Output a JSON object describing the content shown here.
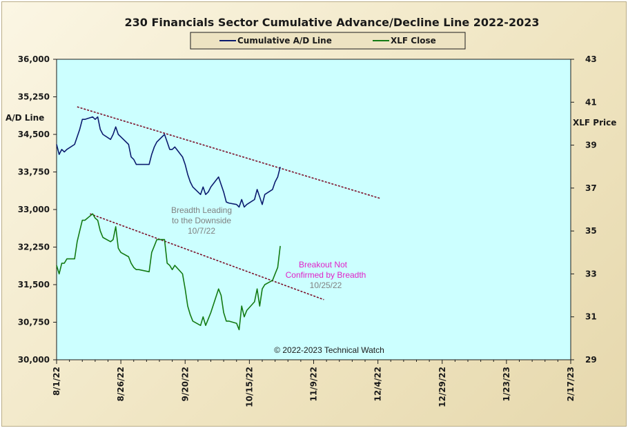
{
  "chart_data": {
    "type": "line",
    "title": "230 Financials  Sector Cumulative  Advance/Decline  Line 2022-2023",
    "ylabel_left": "A/D Line",
    "ylabel_right": "XLF Price",
    "x_tick_labels": [
      "8/1/22",
      "8/26/22",
      "9/20/22",
      "10/15/22",
      "11/9/22",
      "12/4/22",
      "12/29/22",
      "1/23/23",
      "2/17/23"
    ],
    "x_tick_dates": [
      "2022-08-01",
      "2022-08-26",
      "2022-09-20",
      "2022-10-15",
      "2022-11-09",
      "2022-12-04",
      "2022-12-29",
      "2023-01-23",
      "2023-02-17"
    ],
    "xlim": [
      "2022-08-01",
      "2023-02-17"
    ],
    "ylim_left": [
      30000,
      36000
    ],
    "yticks_left": [
      "30,000",
      "30,750",
      "31,500",
      "32,250",
      "33,000",
      "33,750",
      "34,500",
      "35,250",
      "36,000"
    ],
    "ylim_right": [
      29,
      43
    ],
    "yticks_right": [
      "29",
      "31",
      "33",
      "35",
      "37",
      "39",
      "41",
      "43"
    ],
    "grid": false,
    "legend_position": "top-center",
    "colors": {
      "ad_line": "#0a1a6e",
      "xlf": "#127a12",
      "trend": "#7a0a24",
      "plot_bg": "#ccffff",
      "note_grey": "#808080",
      "note_magenta": "#e020c8"
    },
    "series": [
      {
        "name": "Cumulative A/D Line",
        "axis": "left",
        "x": [
          "2022-08-01",
          "2022-08-02",
          "2022-08-03",
          "2022-08-04",
          "2022-08-05",
          "2022-08-08",
          "2022-08-09",
          "2022-08-10",
          "2022-08-11",
          "2022-08-12",
          "2022-08-15",
          "2022-08-16",
          "2022-08-17",
          "2022-08-18",
          "2022-08-19",
          "2022-08-22",
          "2022-08-23",
          "2022-08-24",
          "2022-08-25",
          "2022-08-26",
          "2022-08-29",
          "2022-08-30",
          "2022-08-31",
          "2022-09-01",
          "2022-09-02",
          "2022-09-06",
          "2022-09-07",
          "2022-09-08",
          "2022-09-09",
          "2022-09-12",
          "2022-09-13",
          "2022-09-14",
          "2022-09-15",
          "2022-09-16",
          "2022-09-19",
          "2022-09-20",
          "2022-09-21",
          "2022-09-22",
          "2022-09-23",
          "2022-09-26",
          "2022-09-27",
          "2022-09-28",
          "2022-09-29",
          "2022-09-30",
          "2022-10-03",
          "2022-10-04",
          "2022-10-05",
          "2022-10-06",
          "2022-10-07",
          "2022-10-10",
          "2022-10-11",
          "2022-10-12",
          "2022-10-13",
          "2022-10-14",
          "2022-10-17",
          "2022-10-18",
          "2022-10-19",
          "2022-10-20",
          "2022-10-21",
          "2022-10-24",
          "2022-10-25",
          "2022-10-26",
          "2022-10-27"
        ],
        "values": [
          34300,
          34100,
          34200,
          34150,
          34200,
          34300,
          34450,
          34600,
          34800,
          34800,
          34850,
          34800,
          34850,
          34600,
          34500,
          34400,
          34500,
          34650,
          34500,
          34450,
          34300,
          34050,
          34000,
          33900,
          33900,
          33900,
          34100,
          34250,
          34350,
          34500,
          34350,
          34200,
          34200,
          34250,
          34050,
          33900,
          33700,
          33550,
          33450,
          33300,
          33450,
          33300,
          33350,
          33450,
          33650,
          33500,
          33350,
          33150,
          33130,
          33100,
          33050,
          33200,
          33050,
          33100,
          33200,
          33400,
          33250,
          33100,
          33300,
          33400,
          33550,
          33650,
          33850
        ]
      },
      {
        "name": "XLF Close",
        "axis": "right",
        "x": [
          "2022-08-01",
          "2022-08-02",
          "2022-08-03",
          "2022-08-04",
          "2022-08-05",
          "2022-08-08",
          "2022-08-09",
          "2022-08-10",
          "2022-08-11",
          "2022-08-12",
          "2022-08-15",
          "2022-08-16",
          "2022-08-17",
          "2022-08-18",
          "2022-08-19",
          "2022-08-22",
          "2022-08-23",
          "2022-08-24",
          "2022-08-25",
          "2022-08-26",
          "2022-08-29",
          "2022-08-30",
          "2022-08-31",
          "2022-09-01",
          "2022-09-02",
          "2022-09-06",
          "2022-09-07",
          "2022-09-08",
          "2022-09-09",
          "2022-09-12",
          "2022-09-13",
          "2022-09-14",
          "2022-09-15",
          "2022-09-16",
          "2022-09-19",
          "2022-09-20",
          "2022-09-21",
          "2022-09-22",
          "2022-09-23",
          "2022-09-26",
          "2022-09-27",
          "2022-09-28",
          "2022-09-29",
          "2022-09-30",
          "2022-10-03",
          "2022-10-04",
          "2022-10-05",
          "2022-10-06",
          "2022-10-07",
          "2022-10-10",
          "2022-10-11",
          "2022-10-12",
          "2022-10-13",
          "2022-10-14",
          "2022-10-17",
          "2022-10-18",
          "2022-10-19",
          "2022-10-20",
          "2022-10-21",
          "2022-10-24",
          "2022-10-25",
          "2022-10-26",
          "2022-10-27"
        ],
        "values": [
          33.4,
          33.0,
          33.5,
          33.5,
          33.7,
          33.7,
          34.5,
          35.0,
          35.5,
          35.5,
          35.8,
          35.6,
          35.5,
          35.0,
          34.7,
          34.5,
          34.6,
          35.2,
          34.2,
          34.0,
          33.8,
          33.5,
          33.3,
          33.2,
          33.2,
          33.1,
          34.0,
          34.3,
          34.6,
          34.6,
          33.5,
          33.4,
          33.2,
          33.4,
          33.0,
          32.3,
          31.5,
          31.1,
          30.8,
          30.6,
          31.0,
          30.6,
          30.9,
          31.2,
          32.3,
          32.0,
          31.2,
          30.8,
          30.8,
          30.7,
          30.4,
          31.5,
          31.0,
          31.3,
          31.7,
          32.3,
          31.5,
          32.3,
          32.5,
          32.7,
          33.0,
          33.3,
          34.3
        ]
      }
    ],
    "trendlines": [
      {
        "axis": "left",
        "from": [
          "2022-08-09",
          35050
        ],
        "to": [
          "2022-12-05",
          33220
        ]
      },
      {
        "axis": "right",
        "from": [
          "2022-08-14",
          35.8
        ],
        "to": [
          "2022-11-13",
          31.8
        ]
      }
    ],
    "annotations": [
      {
        "lines": [
          "Breadth Leading",
          "to the Downside",
          "10/7/22"
        ],
        "color": "grey"
      },
      {
        "lines": [
          "Breakout Not",
          "Confirmed  by Breadth"
        ],
        "color": "magenta"
      },
      {
        "lines": [
          "10/25/22"
        ],
        "color": "grey"
      },
      {
        "lines": [
          "© 2022-2023  Technical Watch"
        ],
        "color": "black"
      }
    ]
  }
}
